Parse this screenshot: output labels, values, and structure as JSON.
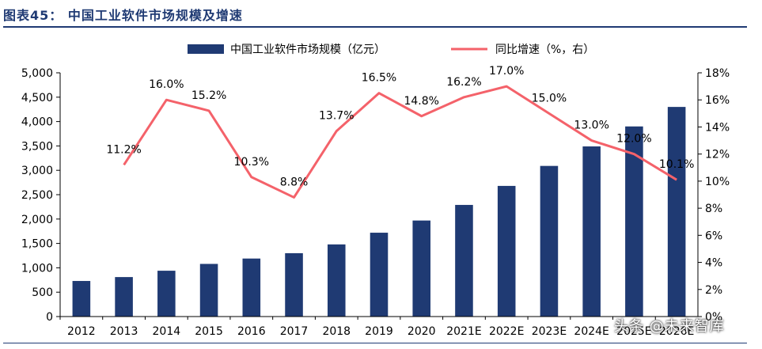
{
  "figure_title": "图表45：  中国工业软件市场规模及增速",
  "watermark": "头条 @未来智库",
  "colors": {
    "bar": "#1f3a73",
    "line": "#f4626a",
    "title": "#1f3a73",
    "text": "#000000"
  },
  "chart_data": {
    "type": "bar",
    "categories": [
      "2012",
      "2013",
      "2014",
      "2015",
      "2016",
      "2017",
      "2018",
      "2019",
      "2020",
      "2021E",
      "2022E",
      "2023E",
      "2024E",
      "2025E",
      "2026E"
    ],
    "x_tick_labels": [
      "2012",
      "2013",
      "2014",
      "2015",
      "2016",
      "2017",
      "2018",
      "2019",
      "2020",
      "2021E",
      "2022E",
      "2023E",
      "2024E",
      "2025E",
      "2026E"
    ],
    "series": [
      {
        "name": "中国工业软件市场规模（亿元）",
        "type": "bar",
        "axis": "left",
        "values": [
          730,
          810,
          940,
          1080,
          1190,
          1300,
          1480,
          1720,
          1970,
          2290,
          2680,
          3090,
          3490,
          3900,
          4300
        ]
      },
      {
        "name": "同比增速（%，右）",
        "type": "line",
        "axis": "right",
        "values": [
          null,
          11.2,
          16.0,
          15.2,
          10.3,
          8.8,
          13.7,
          16.5,
          14.8,
          16.2,
          17.0,
          15.0,
          13.0,
          12.0,
          10.1
        ],
        "labels": [
          "",
          "11.2%",
          "16.0%",
          "15.2%",
          "10.3%",
          "8.8%",
          "13.7%",
          "16.5%",
          "14.8%",
          "16.2%",
          "17.0%",
          "15.0%",
          "13.0%",
          "12.0%",
          "10.1%"
        ]
      }
    ],
    "ylim_left": [
      0,
      5000
    ],
    "yticks_left": [
      "0",
      "500",
      "1,000",
      "1,500",
      "2,000",
      "2,500",
      "3,000",
      "3,500",
      "4,000",
      "4,500",
      "5,000"
    ],
    "ylim_right": [
      0,
      18
    ],
    "yticks_right": [
      "0%",
      "2%",
      "4%",
      "6%",
      "8%",
      "10%",
      "12%",
      "14%",
      "16%",
      "18%"
    ],
    "legend_position": "top",
    "grid": false
  }
}
